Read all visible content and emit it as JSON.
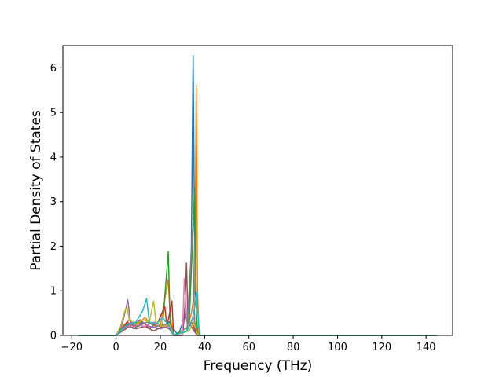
{
  "chart_data": {
    "type": "line",
    "title": "",
    "xlabel": "Frequency (THz)",
    "ylabel": "Partial Density of States",
    "xlim": [
      -24,
      152
    ],
    "ylim": [
      0,
      6.5
    ],
    "x_ticks": [
      -20,
      0,
      20,
      40,
      60,
      80,
      100,
      120,
      140
    ],
    "y_ticks": [
      0,
      1,
      2,
      3,
      4,
      5,
      6
    ],
    "grid": false,
    "legend": "none",
    "x_range_of_data": [
      -17,
      145
    ],
    "series": [
      {
        "color": "#1f77b4",
        "points": [
          [
            -17,
            0
          ],
          [
            0,
            0
          ],
          [
            2,
            0.1
          ],
          [
            5,
            0.25
          ],
          [
            8,
            0.15
          ],
          [
            12,
            0.3
          ],
          [
            15,
            0.2
          ],
          [
            20,
            0.15
          ],
          [
            24,
            0.3
          ],
          [
            28,
            0
          ],
          [
            31,
            0.4
          ],
          [
            33,
            0.5
          ],
          [
            34,
            2.0
          ],
          [
            34.8,
            6.28
          ],
          [
            35.6,
            1.2
          ],
          [
            36.5,
            0.3
          ],
          [
            37,
            0
          ],
          [
            145,
            0
          ]
        ]
      },
      {
        "color": "#ff7f0e",
        "points": [
          [
            -17,
            0
          ],
          [
            0,
            0
          ],
          [
            3,
            0.2
          ],
          [
            6,
            0.35
          ],
          [
            9,
            0.2
          ],
          [
            13,
            0.4
          ],
          [
            16,
            0.25
          ],
          [
            20,
            0.2
          ],
          [
            23.5,
            1.25
          ],
          [
            24.5,
            0.4
          ],
          [
            26,
            0
          ],
          [
            32,
            0.1
          ],
          [
            34,
            0.5
          ],
          [
            35.5,
            1.0
          ],
          [
            36.2,
            5.62
          ],
          [
            36.8,
            1.0
          ],
          [
            37.5,
            0
          ],
          [
            145,
            0
          ]
        ]
      },
      {
        "color": "#2ca02c",
        "points": [
          [
            -17,
            0
          ],
          [
            0,
            0
          ],
          [
            2,
            0.15
          ],
          [
            6,
            0.2
          ],
          [
            10,
            0.3
          ],
          [
            14,
            0.25
          ],
          [
            18,
            0.3
          ],
          [
            21,
            0.2
          ],
          [
            23.6,
            1.87
          ],
          [
            24.4,
            0.3
          ],
          [
            26,
            0
          ],
          [
            33,
            0.2
          ],
          [
            35.5,
            3.3
          ],
          [
            36.3,
            0.4
          ],
          [
            37,
            0
          ],
          [
            145,
            0
          ]
        ]
      },
      {
        "color": "#d62728",
        "points": [
          [
            -17,
            0
          ],
          [
            0,
            0
          ],
          [
            2,
            0.1
          ],
          [
            5,
            0.3
          ],
          [
            8,
            0.2
          ],
          [
            11,
            0.35
          ],
          [
            15,
            0.15
          ],
          [
            19,
            0.3
          ],
          [
            22,
            0.65
          ],
          [
            23,
            0.2
          ],
          [
            25.2,
            0.77
          ],
          [
            26,
            0
          ],
          [
            32,
            0.1
          ],
          [
            34,
            0.3
          ],
          [
            35,
            0.2
          ],
          [
            37,
            0
          ],
          [
            145,
            0
          ]
        ]
      },
      {
        "color": "#9467bd",
        "points": [
          [
            -17,
            0
          ],
          [
            0,
            0
          ],
          [
            2,
            0.1
          ],
          [
            4,
            0.5
          ],
          [
            5.3,
            0.8
          ],
          [
            6.5,
            0.3
          ],
          [
            9,
            0.2
          ],
          [
            12,
            0.3
          ],
          [
            15,
            0.2
          ],
          [
            20,
            0.15
          ],
          [
            24,
            0.2
          ],
          [
            26,
            0
          ],
          [
            30,
            0
          ],
          [
            31,
            0.6
          ],
          [
            32,
            0.3
          ],
          [
            34,
            0.2
          ],
          [
            35,
            0.1
          ],
          [
            37,
            0
          ],
          [
            145,
            0
          ]
        ]
      },
      {
        "color": "#8c564b",
        "points": [
          [
            -17,
            0
          ],
          [
            0,
            0
          ],
          [
            3,
            0.1
          ],
          [
            6,
            0.2
          ],
          [
            9,
            0.15
          ],
          [
            13,
            0.2
          ],
          [
            17,
            0.1
          ],
          [
            21,
            0.2
          ],
          [
            24,
            0.15
          ],
          [
            26,
            0
          ],
          [
            30,
            0
          ],
          [
            31,
            0.5
          ],
          [
            31.8,
            1.62
          ],
          [
            32.5,
            0.3
          ],
          [
            34,
            0.2
          ],
          [
            37,
            0
          ],
          [
            145,
            0
          ]
        ]
      },
      {
        "color": "#e377c2",
        "points": [
          [
            -17,
            0
          ],
          [
            0,
            0
          ],
          [
            2,
            0.1
          ],
          [
            5,
            0.2
          ],
          [
            9,
            0.25
          ],
          [
            13,
            0.2
          ],
          [
            17,
            0.3
          ],
          [
            21,
            0.2
          ],
          [
            24,
            0.2
          ],
          [
            26,
            0
          ],
          [
            30,
            0
          ],
          [
            30.8,
            1.27
          ],
          [
            31.5,
            0.7
          ],
          [
            32.5,
            0.2
          ],
          [
            35,
            0.4
          ],
          [
            37,
            0
          ],
          [
            145,
            0
          ]
        ]
      },
      {
        "color": "#7f7f7f",
        "points": [
          [
            -17,
            0
          ],
          [
            0,
            0
          ],
          [
            3,
            0.15
          ],
          [
            6,
            0.25
          ],
          [
            10,
            0.2
          ],
          [
            14,
            0.3
          ],
          [
            18,
            0.2
          ],
          [
            22,
            0.25
          ],
          [
            25,
            0.2
          ],
          [
            26,
            0
          ],
          [
            32,
            0.1
          ],
          [
            34.5,
            2.35
          ],
          [
            35.5,
            0.3
          ],
          [
            37,
            0
          ],
          [
            145,
            0
          ]
        ]
      },
      {
        "color": "#bcbd22",
        "points": [
          [
            -17,
            0
          ],
          [
            0,
            0
          ],
          [
            2,
            0.2
          ],
          [
            4,
            0.55
          ],
          [
            5,
            0.63
          ],
          [
            6,
            0.35
          ],
          [
            9,
            0.25
          ],
          [
            12,
            0.35
          ],
          [
            15,
            0.3
          ],
          [
            17,
            0.77
          ],
          [
            18,
            0.3
          ],
          [
            21,
            0.2
          ],
          [
            24,
            0.25
          ],
          [
            26,
            0
          ],
          [
            33,
            0.1
          ],
          [
            35,
            0.3
          ],
          [
            37,
            0
          ],
          [
            145,
            0
          ]
        ]
      },
      {
        "color": "#17becf",
        "points": [
          [
            -17,
            0
          ],
          [
            0,
            0
          ],
          [
            2,
            0.1
          ],
          [
            5,
            0.25
          ],
          [
            9,
            0.3
          ],
          [
            12,
            0.55
          ],
          [
            13.8,
            0.83
          ],
          [
            15,
            0.3
          ],
          [
            18,
            0.25
          ],
          [
            21,
            0.4
          ],
          [
            24,
            0.2
          ],
          [
            26,
            0
          ],
          [
            32,
            0.1
          ],
          [
            34,
            0.3
          ],
          [
            35,
            0.5
          ],
          [
            36.5,
            0.95
          ],
          [
            37.3,
            0.2
          ],
          [
            38,
            0
          ],
          [
            145,
            0
          ]
        ]
      }
    ]
  }
}
